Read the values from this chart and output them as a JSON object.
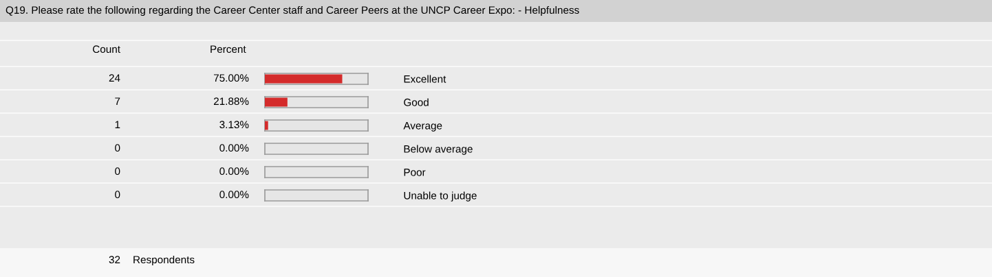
{
  "chart_data": {
    "type": "bar",
    "orientation": "horizontal",
    "title": "Q19. Please rate the following regarding the Career Center staff and Career Peers at the UNCP Career Expo: - Helpfulness",
    "categories": [
      "Excellent",
      "Good",
      "Average",
      "Below average",
      "Poor",
      "Unable to judge"
    ],
    "values": [
      75.0,
      21.88,
      3.13,
      0.0,
      0.0,
      0.0
    ],
    "value_labels": [
      "75.00%",
      "21.88%",
      "3.13%",
      "0.00%",
      "0.00%",
      "0.00%"
    ],
    "color": "#d42b2b",
    "xlim": [
      0,
      100
    ],
    "tick_labels": "y",
    "grid": false,
    "legend": false,
    "annotations": [
      "Count",
      "Percent",
      "24",
      "7",
      "1",
      "0",
      "0",
      "0",
      "32",
      "Respondents"
    ]
  }
}
